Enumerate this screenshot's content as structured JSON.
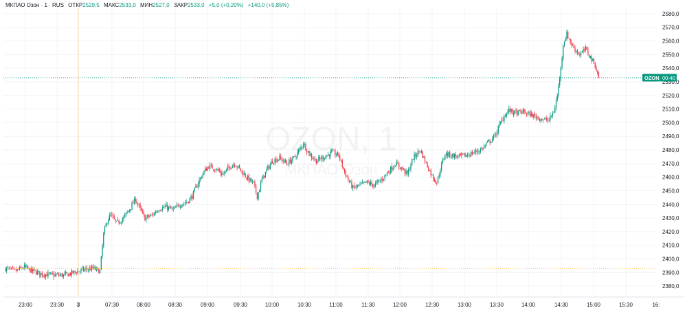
{
  "legend": {
    "symbol": "МКПАО Озон · 1 · RUS",
    "open_label": "ОТКР",
    "open_value": "2529,5",
    "high_label": "МАКС",
    "high_value": "2533,0",
    "low_label": "МИН",
    "low_value": "2527,0",
    "close_label": "ЗАКР",
    "close_value": "2533,0",
    "change": "+5,0 (+0,20%)",
    "change_day": "+140,0 (+5,85%)"
  },
  "watermark": {
    "main": "OZON, 1",
    "sub": "МКПАО Озон"
  },
  "price_tag": {
    "ticker": "OZON",
    "countdown": "00:40",
    "value": 2533.0
  },
  "colors": {
    "up": "#089981",
    "down": "#f23645",
    "tag_bg": "#089981",
    "grid": "#f0f3fa",
    "axis_text": "#131722",
    "session_line": "#f5d9a8"
  },
  "chart_data": {
    "type": "candlestick",
    "title": "",
    "grid": true,
    "y_axis_side": "right",
    "ylim": [
      2373,
      2584
    ],
    "y_ticks": [
      2380,
      2390,
      2400,
      2410,
      2420,
      2430,
      2440,
      2450,
      2460,
      2470,
      2480,
      2490,
      2500,
      2510,
      2520,
      2530,
      2540,
      2550,
      2560,
      2570,
      2580
    ],
    "y_tick_labels": [
      "2380,0",
      "2390,0",
      "2400,0",
      "2410,0",
      "2420,0",
      "2430,0",
      "2440,0",
      "2450,0",
      "2460,0",
      "2470,0",
      "2480,0",
      "2490,0",
      "2500,0",
      "2510,0",
      "2520,0",
      "2530,0",
      "2540,0",
      "2550,0",
      "2560,0",
      "2570,0",
      "2580,0"
    ],
    "x_tick_labels": [
      "23:00",
      "23:30",
      "3",
      "07:30",
      "08:00",
      "08:30",
      "09:00",
      "09:30",
      "10:00",
      "10:30",
      "11:00",
      "11:30",
      "12:00",
      "12:30",
      "13:00",
      "13:30",
      "14:00",
      "14:30",
      "15:00",
      "15:30",
      "16:"
    ],
    "prev_close": 2393,
    "last_price": 2533,
    "price_path": [
      [
        0,
        2393
      ],
      [
        8,
        2391
      ],
      [
        16,
        2394
      ],
      [
        20,
        2392
      ],
      [
        30,
        2389
      ],
      [
        40,
        2388
      ],
      [
        50,
        2388
      ],
      [
        58,
        2390
      ],
      [
        66,
        2392
      ],
      [
        74,
        2393
      ],
      [
        80,
        2391
      ],
      [
        81,
        2400
      ],
      [
        83,
        2418
      ],
      [
        86,
        2428
      ],
      [
        89,
        2432
      ],
      [
        94,
        2426
      ],
      [
        100,
        2430
      ],
      [
        106,
        2438
      ],
      [
        110,
        2444
      ],
      [
        114,
        2436
      ],
      [
        118,
        2430
      ],
      [
        124,
        2432
      ],
      [
        130,
        2437
      ],
      [
        136,
        2438
      ],
      [
        142,
        2436
      ],
      [
        148,
        2440
      ],
      [
        154,
        2442
      ],
      [
        158,
        2446
      ],
      [
        163,
        2456
      ],
      [
        168,
        2464
      ],
      [
        172,
        2468
      ],
      [
        178,
        2466
      ],
      [
        184,
        2462
      ],
      [
        190,
        2468
      ],
      [
        194,
        2470
      ],
      [
        198,
        2466
      ],
      [
        204,
        2460
      ],
      [
        210,
        2455
      ],
      [
        213,
        2446
      ],
      [
        217,
        2458
      ],
      [
        221,
        2465
      ],
      [
        226,
        2472
      ],
      [
        232,
        2474
      ],
      [
        238,
        2470
      ],
      [
        244,
        2474
      ],
      [
        249,
        2480
      ],
      [
        252,
        2485
      ],
      [
        257,
        2477
      ],
      [
        263,
        2472
      ],
      [
        270,
        2475
      ],
      [
        276,
        2478
      ],
      [
        282,
        2476
      ],
      [
        286,
        2466
      ],
      [
        290,
        2458
      ],
      [
        294,
        2452
      ],
      [
        300,
        2454
      ],
      [
        306,
        2456
      ],
      [
        312,
        2454
      ],
      [
        318,
        2458
      ],
      [
        324,
        2464
      ],
      [
        330,
        2470
      ],
      [
        336,
        2466
      ],
      [
        340,
        2462
      ],
      [
        345,
        2474
      ],
      [
        351,
        2480
      ],
      [
        356,
        2470
      ],
      [
        361,
        2461
      ],
      [
        365,
        2456
      ],
      [
        368,
        2466
      ],
      [
        372,
        2477
      ],
      [
        378,
        2476
      ],
      [
        384,
        2475
      ],
      [
        390,
        2476
      ],
      [
        396,
        2478
      ],
      [
        402,
        2480
      ],
      [
        408,
        2485
      ],
      [
        414,
        2490
      ],
      [
        418,
        2498
      ],
      [
        422,
        2505
      ],
      [
        426,
        2509
      ],
      [
        432,
        2507
      ],
      [
        438,
        2508
      ],
      [
        444,
        2506
      ],
      [
        450,
        2504
      ],
      [
        456,
        2502
      ],
      [
        460,
        2502
      ],
      [
        464,
        2508
      ],
      [
        467,
        2520
      ],
      [
        470,
        2540
      ],
      [
        472,
        2558
      ],
      [
        475,
        2565
      ],
      [
        480,
        2556
      ],
      [
        486,
        2550
      ],
      [
        491,
        2554
      ],
      [
        495,
        2548
      ],
      [
        499,
        2542
      ],
      [
        502,
        2533
      ]
    ]
  }
}
